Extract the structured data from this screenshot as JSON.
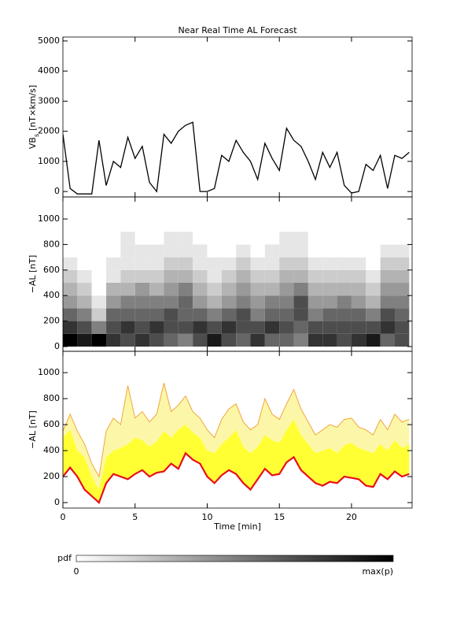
{
  "chart_data": [
    {
      "type": "line",
      "title": "Near Real Time AL Forecast",
      "ylabel": {
        "main": "VB",
        "sub": "s",
        "rest": "[nT×km/s]"
      },
      "xlim": [
        0,
        24.2
      ],
      "xticks": [
        0,
        5,
        10,
        15,
        20
      ],
      "show_xtick_labels": false,
      "ylim": [
        -180,
        5130
      ],
      "yticks": [
        0,
        1000,
        2000,
        3000,
        4000,
        5000
      ],
      "color": "#000000",
      "x": [
        0,
        0.5,
        1,
        1.5,
        2,
        2.5,
        3,
        3.5,
        4,
        4.5,
        5,
        5.5,
        6,
        6.5,
        7,
        7.5,
        8,
        8.5,
        9,
        9.5,
        10,
        10.5,
        11,
        11.5,
        12,
        12.5,
        13,
        13.5,
        14,
        14.5,
        15,
        15.5,
        16,
        16.5,
        17,
        17.5,
        18,
        18.5,
        19,
        19.5,
        20,
        20.5,
        21,
        21.5,
        22,
        22.5,
        23,
        23.5,
        24
      ],
      "values": [
        1900,
        100,
        -80,
        -80,
        -80,
        1700,
        200,
        1000,
        800,
        1800,
        1100,
        1500,
        300,
        0,
        1900,
        1600,
        2000,
        2200,
        2300,
        0,
        0,
        100,
        1200,
        1000,
        1700,
        1300,
        1000,
        400,
        1600,
        1100,
        700,
        2100,
        1700,
        1500,
        1000,
        400,
        1300,
        800,
        1300,
        200,
        -50,
        0,
        900,
        700,
        1200,
        100,
        1200,
        1100,
        1300
      ]
    },
    {
      "type": "heatmap",
      "ylabel": "−AL [nT]",
      "xlim": [
        0,
        24.2
      ],
      "xticks": [
        0,
        5,
        10,
        15,
        20
      ],
      "show_xtick_labels": false,
      "ylim": [
        -37,
        1173
      ],
      "yticks": [
        0,
        200,
        400,
        600,
        800,
        1000
      ],
      "xbins": [
        0,
        1,
        2,
        3,
        4,
        5,
        6,
        7,
        8,
        9,
        10,
        11,
        12,
        13,
        14,
        15,
        16,
        17,
        18,
        19,
        20,
        21,
        22,
        23,
        24
      ],
      "ybins": [
        0,
        100,
        200,
        300,
        400,
        500,
        600,
        700,
        800,
        900,
        1000
      ],
      "pdf": [
        [
          1,
          0.8,
          0.6,
          0.4,
          0.3,
          0.2,
          0.1,
          0,
          0,
          0
        ],
        [
          0.9,
          0.7,
          0.5,
          0.3,
          0.2,
          0.1,
          0,
          0,
          0,
          0
        ],
        [
          1,
          0.5,
          0.2,
          0.1,
          0,
          0,
          0,
          0,
          0,
          0
        ],
        [
          0.8,
          0.7,
          0.6,
          0.4,
          0.3,
          0.1,
          0.1,
          0,
          0,
          0
        ],
        [
          0.7,
          0.8,
          0.6,
          0.5,
          0.3,
          0.2,
          0.1,
          0.1,
          0.1,
          0
        ],
        [
          0.8,
          0.7,
          0.6,
          0.5,
          0.4,
          0.2,
          0.1,
          0.1,
          0,
          0
        ],
        [
          0.7,
          0.8,
          0.6,
          0.5,
          0.3,
          0.2,
          0.1,
          0.1,
          0,
          0
        ],
        [
          0.6,
          0.7,
          0.7,
          0.5,
          0.4,
          0.3,
          0.2,
          0.1,
          0.1,
          0
        ],
        [
          0.5,
          0.7,
          0.6,
          0.6,
          0.5,
          0.3,
          0.2,
          0.1,
          0.1,
          0
        ],
        [
          0.7,
          0.8,
          0.6,
          0.4,
          0.3,
          0.2,
          0.1,
          0.1,
          0,
          0
        ],
        [
          0.9,
          0.7,
          0.5,
          0.3,
          0.2,
          0.1,
          0.1,
          0,
          0,
          0
        ],
        [
          0.7,
          0.8,
          0.6,
          0.4,
          0.3,
          0.2,
          0.1,
          0,
          0,
          0
        ],
        [
          0.6,
          0.7,
          0.7,
          0.5,
          0.4,
          0.3,
          0.2,
          0.1,
          0,
          0
        ],
        [
          0.8,
          0.7,
          0.5,
          0.4,
          0.3,
          0.2,
          0.1,
          0,
          0,
          0
        ],
        [
          0.6,
          0.8,
          0.6,
          0.5,
          0.3,
          0.2,
          0.1,
          0.1,
          0,
          0
        ],
        [
          0.6,
          0.7,
          0.6,
          0.5,
          0.4,
          0.3,
          0.2,
          0.1,
          0.1,
          0
        ],
        [
          0.5,
          0.6,
          0.7,
          0.7,
          0.5,
          0.3,
          0.2,
          0.1,
          0.1,
          0
        ],
        [
          0.8,
          0.7,
          0.5,
          0.4,
          0.3,
          0.2,
          0.1,
          0,
          0,
          0
        ],
        [
          0.8,
          0.7,
          0.6,
          0.4,
          0.3,
          0.2,
          0.1,
          0,
          0,
          0
        ],
        [
          0.7,
          0.7,
          0.6,
          0.5,
          0.3,
          0.2,
          0.1,
          0,
          0,
          0
        ],
        [
          0.8,
          0.7,
          0.6,
          0.4,
          0.3,
          0.2,
          0.1,
          0,
          0,
          0
        ],
        [
          0.9,
          0.7,
          0.5,
          0.3,
          0.2,
          0.1,
          0,
          0,
          0,
          0
        ],
        [
          0.6,
          0.8,
          0.7,
          0.5,
          0.4,
          0.3,
          0.2,
          0.1,
          0,
          0
        ],
        [
          0.7,
          0.7,
          0.6,
          0.5,
          0.4,
          0.3,
          0.2,
          0.1,
          0,
          0
        ]
      ],
      "cmap": [
        "#ffffff",
        "#000000"
      ],
      "colorbar": {
        "label": "pdf",
        "min_label": "0",
        "max_label": "max(p)"
      }
    },
    {
      "type": "band",
      "ylabel": "−AL [nT]",
      "xlabel": "Time [min]",
      "xlim": [
        0,
        24.2
      ],
      "xticks": [
        0,
        5,
        10,
        15,
        20
      ],
      "show_xtick_labels": true,
      "ylim": [
        -42,
        1164
      ],
      "yticks": [
        0,
        200,
        400,
        600,
        800,
        1000
      ],
      "x": [
        0,
        0.5,
        1,
        1.5,
        2,
        2.5,
        3,
        3.5,
        4,
        4.5,
        5,
        5.5,
        6,
        6.5,
        7,
        7.5,
        8,
        8.5,
        9,
        9.5,
        10,
        10.5,
        11,
        11.5,
        12,
        12.5,
        13,
        13.5,
        14,
        14.5,
        15,
        15.5,
        16,
        16.5,
        17,
        17.5,
        18,
        18.5,
        19,
        19.5,
        20,
        20.5,
        21,
        21.5,
        22,
        22.5,
        23,
        23.5,
        24
      ],
      "series": [
        {
          "color": "#f2a43a",
          "fill": "#fcf7a8",
          "values": [
            550,
            680,
            550,
            450,
            300,
            200,
            550,
            650,
            600,
            900,
            650,
            700,
            620,
            680,
            920,
            700,
            750,
            820,
            700,
            650,
            560,
            500,
            640,
            720,
            760,
            620,
            560,
            600,
            800,
            680,
            640,
            760,
            870,
            720,
            620,
            520,
            560,
            600,
            580,
            640,
            650,
            580,
            560,
            520,
            640,
            560,
            680,
            620,
            640
          ]
        },
        {
          "fill": "#ffff33",
          "values": [
            500,
            560,
            400,
            350,
            200,
            100,
            350,
            400,
            420,
            450,
            500,
            480,
            430,
            470,
            550,
            500,
            560,
            600,
            540,
            500,
            400,
            380,
            450,
            500,
            560,
            430,
            380,
            430,
            520,
            480,
            460,
            560,
            640,
            520,
            450,
            380,
            400,
            420,
            380,
            440,
            460,
            420,
            400,
            380,
            450,
            400,
            480,
            420,
            450
          ]
        },
        {
          "color": "#e8101a",
          "values": [
            200,
            270,
            200,
            100,
            50,
            0,
            150,
            220,
            200,
            180,
            220,
            250,
            200,
            230,
            240,
            300,
            260,
            380,
            330,
            300,
            200,
            150,
            210,
            250,
            220,
            150,
            100,
            180,
            260,
            210,
            220,
            310,
            350,
            250,
            200,
            150,
            130,
            160,
            150,
            200,
            190,
            180,
            130,
            120,
            220,
            180,
            240,
            200,
            220
          ]
        }
      ]
    }
  ]
}
